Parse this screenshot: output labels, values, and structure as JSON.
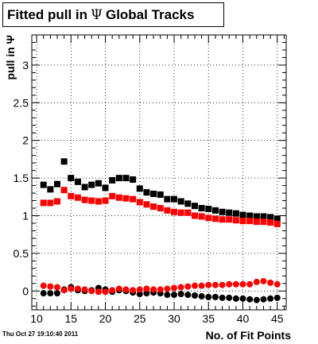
{
  "title": {
    "prefix": "Fitted pull in",
    "symbol": "Ψ",
    "suffix": "Global Tracks"
  },
  "datestamp": "Thu Oct 27 19:10:40 2011",
  "chart_data": {
    "type": "scatter",
    "xlabel": "No. of Fit Points",
    "ylabel": "pull in Ψ",
    "xlim": [
      9.3,
      46.3
    ],
    "ylim": [
      -0.25,
      3.4
    ],
    "x_ticks": [
      10,
      15,
      20,
      25,
      30,
      35,
      40,
      45
    ],
    "y_ticks": [
      0,
      0.5,
      1,
      1.5,
      2,
      2.5,
      3
    ],
    "y_tick_labels": [
      "0",
      "0.5",
      "1",
      "1.5",
      "2",
      "2.5",
      "3"
    ],
    "grid": true,
    "series": [
      {
        "color": "#000000",
        "marker": "square",
        "x": [
          11,
          12,
          13,
          14,
          15,
          16,
          17,
          18,
          19,
          20,
          21,
          22,
          23,
          24,
          25,
          26,
          27,
          28,
          29,
          30,
          31,
          32,
          33,
          34,
          35,
          36,
          37,
          38,
          39,
          40,
          41,
          42,
          43,
          44,
          45
        ],
        "y": [
          1.41,
          1.35,
          1.42,
          1.72,
          1.5,
          1.45,
          1.38,
          1.41,
          1.43,
          1.37,
          1.47,
          1.5,
          1.5,
          1.48,
          1.36,
          1.31,
          1.29,
          1.28,
          1.22,
          1.22,
          1.19,
          1.16,
          1.13,
          1.1,
          1.09,
          1.07,
          1.05,
          1.04,
          1.03,
          1.01,
          1.0,
          0.99,
          0.99,
          0.98,
          0.96
        ]
      },
      {
        "color": "#ff0000",
        "marker": "square",
        "x": [
          11,
          12,
          13,
          14,
          15,
          16,
          17,
          18,
          19,
          20,
          21,
          22,
          23,
          24,
          25,
          26,
          27,
          28,
          29,
          30,
          31,
          32,
          33,
          34,
          35,
          36,
          37,
          38,
          39,
          40,
          41,
          42,
          43,
          44,
          45
        ],
        "y": [
          1.17,
          1.17,
          1.19,
          1.34,
          1.26,
          1.24,
          1.21,
          1.2,
          1.19,
          1.2,
          1.26,
          1.24,
          1.23,
          1.22,
          1.18,
          1.15,
          1.12,
          1.1,
          1.07,
          1.05,
          1.04,
          1.04,
          1.0,
          0.99,
          0.97,
          0.96,
          0.95,
          0.95,
          0.94,
          0.93,
          0.93,
          0.92,
          0.92,
          0.91,
          0.89
        ]
      },
      {
        "color": "#000000",
        "marker": "circle",
        "x": [
          11,
          12,
          13,
          14,
          15,
          16,
          17,
          18,
          19,
          20,
          21,
          22,
          23,
          24,
          25,
          26,
          27,
          28,
          29,
          30,
          31,
          32,
          33,
          34,
          35,
          36,
          37,
          38,
          39,
          40,
          41,
          42,
          43,
          44,
          45
        ],
        "y": [
          -0.03,
          -0.03,
          -0.03,
          0.02,
          0.05,
          0.01,
          0.0,
          0.01,
          0.04,
          0.02,
          -0.01,
          0.01,
          0.0,
          -0.02,
          -0.04,
          -0.03,
          -0.02,
          -0.03,
          -0.05,
          -0.05,
          -0.04,
          -0.05,
          -0.06,
          -0.07,
          -0.08,
          -0.08,
          -0.09,
          -0.09,
          -0.1,
          -0.1,
          -0.11,
          -0.12,
          -0.11,
          -0.1,
          -0.09
        ]
      },
      {
        "color": "#ff0000",
        "marker": "circle",
        "x": [
          11,
          12,
          13,
          14,
          15,
          16,
          17,
          18,
          19,
          20,
          21,
          22,
          23,
          24,
          25,
          26,
          27,
          28,
          29,
          30,
          31,
          32,
          33,
          34,
          35,
          36,
          37,
          38,
          39,
          40,
          41,
          42,
          43,
          44,
          45
        ],
        "y": [
          0.07,
          0.06,
          0.05,
          0.01,
          0.03,
          0.03,
          0.02,
          0.0,
          -0.01,
          -0.01,
          0.01,
          0.03,
          0.02,
          0.01,
          0.02,
          0.03,
          0.02,
          0.02,
          0.03,
          0.04,
          0.05,
          0.06,
          0.07,
          0.07,
          0.08,
          0.08,
          0.08,
          0.09,
          0.09,
          0.09,
          0.09,
          0.12,
          0.13,
          0.11,
          0.09
        ]
      }
    ]
  }
}
